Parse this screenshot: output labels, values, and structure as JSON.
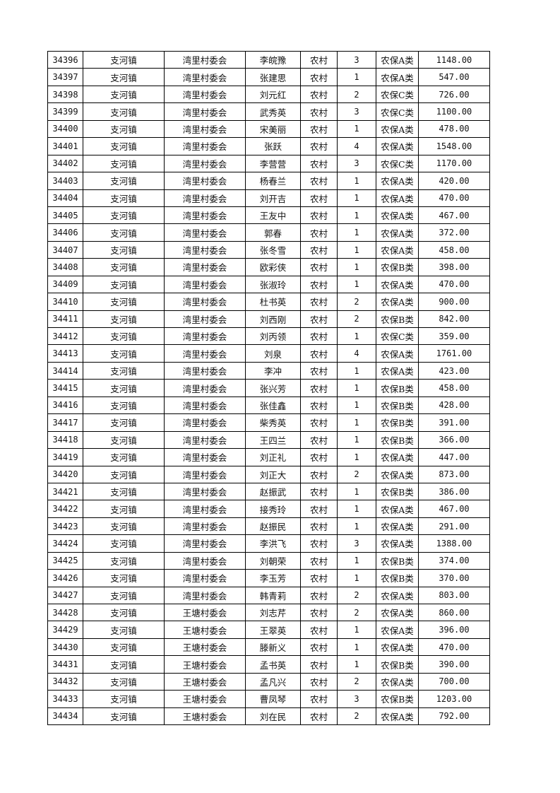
{
  "table": {
    "rows": [
      [
        "34396",
        "支河镇",
        "湾里村委会",
        "李皖豫",
        "农村",
        "3",
        "农保A类",
        "1148.00"
      ],
      [
        "34397",
        "支河镇",
        "湾里村委会",
        "张建思",
        "农村",
        "1",
        "农保A类",
        "547.00"
      ],
      [
        "34398",
        "支河镇",
        "湾里村委会",
        "刘元红",
        "农村",
        "2",
        "农保C类",
        "726.00"
      ],
      [
        "34399",
        "支河镇",
        "湾里村委会",
        "武秀英",
        "农村",
        "3",
        "农保C类",
        "1100.00"
      ],
      [
        "34400",
        "支河镇",
        "湾里村委会",
        "宋美丽",
        "农村",
        "1",
        "农保A类",
        "478.00"
      ],
      [
        "34401",
        "支河镇",
        "湾里村委会",
        "张跃",
        "农村",
        "4",
        "农保A类",
        "1548.00"
      ],
      [
        "34402",
        "支河镇",
        "湾里村委会",
        "李营营",
        "农村",
        "3",
        "农保C类",
        "1170.00"
      ],
      [
        "34403",
        "支河镇",
        "湾里村委会",
        "杨春兰",
        "农村",
        "1",
        "农保A类",
        "420.00"
      ],
      [
        "34404",
        "支河镇",
        "湾里村委会",
        "刘开吉",
        "农村",
        "1",
        "农保A类",
        "470.00"
      ],
      [
        "34405",
        "支河镇",
        "湾里村委会",
        "王友中",
        "农村",
        "1",
        "农保A类",
        "467.00"
      ],
      [
        "34406",
        "支河镇",
        "湾里村委会",
        "郭春",
        "农村",
        "1",
        "农保A类",
        "372.00"
      ],
      [
        "34407",
        "支河镇",
        "湾里村委会",
        "张冬雪",
        "农村",
        "1",
        "农保A类",
        "458.00"
      ],
      [
        "34408",
        "支河镇",
        "湾里村委会",
        "欧彩侠",
        "农村",
        "1",
        "农保B类",
        "398.00"
      ],
      [
        "34409",
        "支河镇",
        "湾里村委会",
        "张淑玲",
        "农村",
        "1",
        "农保A类",
        "470.00"
      ],
      [
        "34410",
        "支河镇",
        "湾里村委会",
        "杜书英",
        "农村",
        "2",
        "农保A类",
        "900.00"
      ],
      [
        "34411",
        "支河镇",
        "湾里村委会",
        "刘西刚",
        "农村",
        "2",
        "农保B类",
        "842.00"
      ],
      [
        "34412",
        "支河镇",
        "湾里村委会",
        "刘丙领",
        "农村",
        "1",
        "农保C类",
        "359.00"
      ],
      [
        "34413",
        "支河镇",
        "湾里村委会",
        "刘泉",
        "农村",
        "4",
        "农保A类",
        "1761.00"
      ],
      [
        "34414",
        "支河镇",
        "湾里村委会",
        "李冲",
        "农村",
        "1",
        "农保A类",
        "423.00"
      ],
      [
        "34415",
        "支河镇",
        "湾里村委会",
        "张兴芳",
        "农村",
        "1",
        "农保B类",
        "458.00"
      ],
      [
        "34416",
        "支河镇",
        "湾里村委会",
        "张佳鑫",
        "农村",
        "1",
        "农保B类",
        "428.00"
      ],
      [
        "34417",
        "支河镇",
        "湾里村委会",
        "柴秀英",
        "农村",
        "1",
        "农保B类",
        "391.00"
      ],
      [
        "34418",
        "支河镇",
        "湾里村委会",
        "王四兰",
        "农村",
        "1",
        "农保B类",
        "366.00"
      ],
      [
        "34419",
        "支河镇",
        "湾里村委会",
        "刘正礼",
        "农村",
        "1",
        "农保A类",
        "447.00"
      ],
      [
        "34420",
        "支河镇",
        "湾里村委会",
        "刘正大",
        "农村",
        "2",
        "农保A类",
        "873.00"
      ],
      [
        "34421",
        "支河镇",
        "湾里村委会",
        "赵振武",
        "农村",
        "1",
        "农保B类",
        "386.00"
      ],
      [
        "34422",
        "支河镇",
        "湾里村委会",
        "接秀玲",
        "农村",
        "1",
        "农保A类",
        "467.00"
      ],
      [
        "34423",
        "支河镇",
        "湾里村委会",
        "赵振民",
        "农村",
        "1",
        "农保A类",
        "291.00"
      ],
      [
        "34424",
        "支河镇",
        "湾里村委会",
        "李洪飞",
        "农村",
        "3",
        "农保A类",
        "1388.00"
      ],
      [
        "34425",
        "支河镇",
        "湾里村委会",
        "刘朝荣",
        "农村",
        "1",
        "农保B类",
        "374.00"
      ],
      [
        "34426",
        "支河镇",
        "湾里村委会",
        "李玉芳",
        "农村",
        "1",
        "农保B类",
        "370.00"
      ],
      [
        "34427",
        "支河镇",
        "湾里村委会",
        "韩青莉",
        "农村",
        "2",
        "农保A类",
        "803.00"
      ],
      [
        "34428",
        "支河镇",
        "王塘村委会",
        "刘志芹",
        "农村",
        "2",
        "农保A类",
        "860.00"
      ],
      [
        "34429",
        "支河镇",
        "王塘村委会",
        "王翠英",
        "农村",
        "1",
        "农保A类",
        "396.00"
      ],
      [
        "34430",
        "支河镇",
        "王塘村委会",
        "滕新义",
        "农村",
        "1",
        "农保A类",
        "470.00"
      ],
      [
        "34431",
        "支河镇",
        "王塘村委会",
        "孟书英",
        "农村",
        "1",
        "农保B类",
        "390.00"
      ],
      [
        "34432",
        "支河镇",
        "王塘村委会",
        "孟凡兴",
        "农村",
        "2",
        "农保A类",
        "700.00"
      ],
      [
        "34433",
        "支河镇",
        "王塘村委会",
        "曹凤琴",
        "农村",
        "3",
        "农保B类",
        "1203.00"
      ],
      [
        "34434",
        "支河镇",
        "王塘村委会",
        "刘在民",
        "农村",
        "2",
        "农保A类",
        "792.00"
      ]
    ]
  }
}
